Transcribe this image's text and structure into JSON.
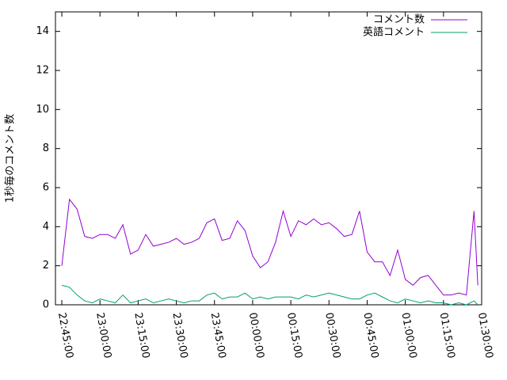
{
  "chart_data": {
    "type": "line",
    "ylabel": "1秒毎のコメント数",
    "x": [
      "22:45:00",
      "22:48:00",
      "22:51:00",
      "22:54:00",
      "22:57:00",
      "23:00:00",
      "23:03:00",
      "23:06:00",
      "23:09:00",
      "23:12:00",
      "23:15:00",
      "23:18:00",
      "23:21:00",
      "23:24:00",
      "23:27:00",
      "23:30:00",
      "23:33:00",
      "23:36:00",
      "23:39:00",
      "23:42:00",
      "23:45:00",
      "23:48:00",
      "23:51:00",
      "23:54:00",
      "23:57:00",
      "00:00:00",
      "00:03:00",
      "00:06:00",
      "00:09:00",
      "00:12:00",
      "00:15:00",
      "00:18:00",
      "00:21:00",
      "00:24:00",
      "00:27:00",
      "00:30:00",
      "00:33:00",
      "00:36:00",
      "00:39:00",
      "00:42:00",
      "00:45:00",
      "00:48:00",
      "00:51:00",
      "00:54:00",
      "00:57:00",
      "01:00:00",
      "01:03:00",
      "01:06:00",
      "01:09:00",
      "01:12:00",
      "01:15:00",
      "01:18:00",
      "01:21:00",
      "01:24:00",
      "01:27:00",
      "01:28:30"
    ],
    "series": [
      {
        "name": "コメント数",
        "color": "#9400d3",
        "values": [
          2.0,
          5.4,
          4.9,
          3.5,
          3.4,
          3.6,
          3.6,
          3.4,
          4.1,
          2.6,
          2.8,
          3.6,
          3.0,
          3.1,
          3.2,
          3.4,
          3.1,
          3.2,
          3.4,
          4.2,
          4.4,
          3.3,
          3.4,
          4.3,
          3.8,
          2.5,
          1.9,
          2.2,
          3.2,
          4.8,
          3.5,
          4.3,
          4.1,
          4.4,
          4.1,
          4.2,
          3.9,
          3.5,
          3.6,
          4.8,
          2.7,
          2.2,
          2.2,
          1.5,
          2.8,
          1.3,
          1.0,
          1.4,
          1.5,
          1.0,
          0.5,
          0.5,
          0.6,
          0.5,
          4.8,
          1.0
        ]
      },
      {
        "name": "英語コメント",
        "color": "#009e73",
        "values": [
          1.0,
          0.9,
          0.5,
          0.2,
          0.1,
          0.3,
          0.2,
          0.1,
          0.5,
          0.1,
          0.2,
          0.3,
          0.1,
          0.2,
          0.3,
          0.2,
          0.1,
          0.2,
          0.2,
          0.5,
          0.6,
          0.3,
          0.4,
          0.4,
          0.6,
          0.3,
          0.4,
          0.3,
          0.4,
          0.4,
          0.4,
          0.3,
          0.5,
          0.4,
          0.5,
          0.6,
          0.5,
          0.4,
          0.3,
          0.3,
          0.5,
          0.6,
          0.4,
          0.2,
          0.1,
          0.3,
          0.2,
          0.1,
          0.2,
          0.1,
          0.1,
          0.0,
          0.1,
          0.0,
          0.2,
          0.0
        ]
      }
    ],
    "xlim": [
      "22:42:30",
      "01:30:00"
    ],
    "xticks": [
      "22:45:00",
      "23:00:00",
      "23:15:00",
      "23:30:00",
      "23:45:00",
      "00:00:00",
      "00:15:00",
      "00:30:00",
      "00:45:00",
      "01:00:00",
      "01:15:00",
      "01:30:00"
    ],
    "ylim": [
      0,
      15
    ],
    "yticks": [
      0,
      2,
      4,
      6,
      8,
      10,
      12,
      14
    ],
    "legend": "top-right"
  }
}
